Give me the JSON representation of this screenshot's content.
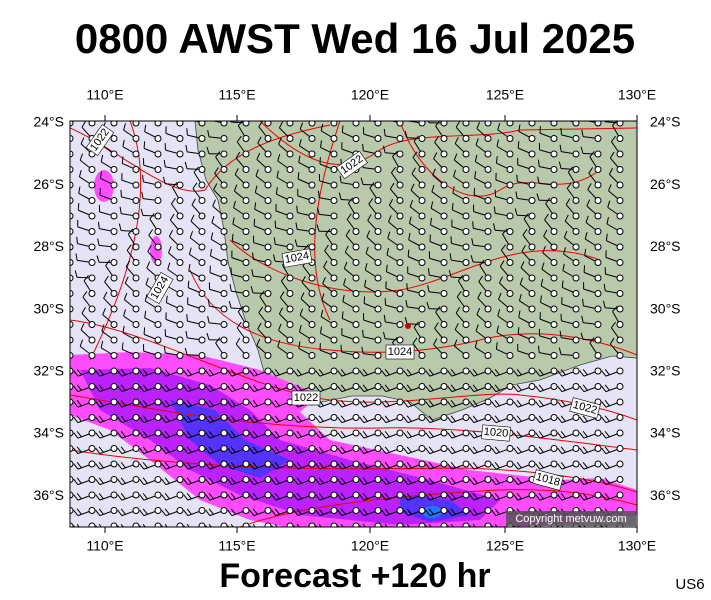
{
  "title": "0800 AWST Wed 16 Jul 2025",
  "footer": "Forecast +120 hr",
  "tag": "US6",
  "copyright": "Copyright metvuw.com",
  "longitude_labels": [
    "110°E",
    "115°E",
    "120°E",
    "125°E",
    "130°E"
  ],
  "latitude_labels": [
    "24°S",
    "26°S",
    "28°S",
    "30°S",
    "32°S",
    "34°S",
    "36°S"
  ],
  "isobar_labels": [
    "1022",
    "1022",
    "1024",
    "1024",
    "1024",
    "1022",
    "1022",
    "1020",
    "1018"
  ]
}
